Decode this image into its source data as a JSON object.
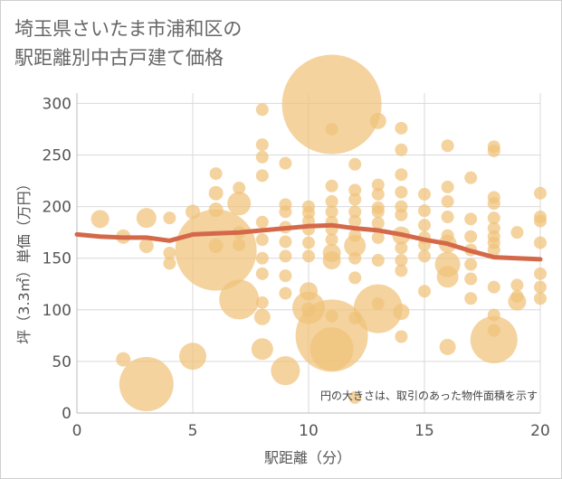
{
  "title_line1": "埼玉県さいたま市浦和区の",
  "title_line2": "駅距離別中古戸建て価格",
  "chart_data": {
    "type": "scatter",
    "xlabel": "駅距離（分）",
    "ylabel": "坪（3.3㎡）単価（万円）",
    "xlim": [
      0,
      20
    ],
    "ylim": [
      0,
      310
    ],
    "x_ticks": [
      0,
      5,
      10,
      15,
      20
    ],
    "y_ticks": [
      0,
      50,
      100,
      150,
      200,
      250,
      300
    ],
    "note": "円の大きさは、取引のあった物件面積を示す",
    "colors": {
      "bubble": "#F0C27A",
      "trend": "#D4694A",
      "grid": "#d9d9d9"
    },
    "trend": [
      [
        0,
        173
      ],
      [
        1,
        171
      ],
      [
        2,
        170
      ],
      [
        3,
        170
      ],
      [
        4,
        167
      ],
      [
        5,
        173
      ],
      [
        6,
        174
      ],
      [
        7,
        175
      ],
      [
        8,
        177
      ],
      [
        9,
        179
      ],
      [
        10,
        181
      ],
      [
        11,
        182
      ],
      [
        12,
        179
      ],
      [
        13,
        177
      ],
      [
        14,
        173
      ],
      [
        15,
        168
      ],
      [
        16,
        164
      ],
      [
        17,
        157
      ],
      [
        18,
        151
      ],
      [
        19,
        150
      ],
      [
        20,
        149
      ]
    ],
    "points": [
      [
        1,
        188,
        10
      ],
      [
        2,
        171,
        8
      ],
      [
        2,
        52,
        8
      ],
      [
        3,
        189,
        11
      ],
      [
        3,
        162,
        8
      ],
      [
        3,
        28,
        30
      ],
      [
        4,
        189,
        7
      ],
      [
        4,
        155,
        7
      ],
      [
        4,
        145,
        7
      ],
      [
        5,
        195,
        8
      ],
      [
        5,
        55,
        15
      ],
      [
        6,
        232,
        7
      ],
      [
        6,
        213,
        8
      ],
      [
        6,
        197,
        8
      ],
      [
        6,
        162,
        8
      ],
      [
        6,
        158,
        45
      ],
      [
        7,
        218,
        7
      ],
      [
        7,
        203,
        13
      ],
      [
        7,
        175,
        7
      ],
      [
        7,
        163,
        7
      ],
      [
        7,
        110,
        22
      ],
      [
        8,
        294,
        7
      ],
      [
        8,
        260,
        7
      ],
      [
        8,
        248,
        7
      ],
      [
        8,
        230,
        7
      ],
      [
        8,
        185,
        7
      ],
      [
        8,
        168,
        7
      ],
      [
        8,
        150,
        7
      ],
      [
        8,
        135,
        7
      ],
      [
        8,
        107,
        7
      ],
      [
        8,
        93,
        9
      ],
      [
        8,
        62,
        12
      ],
      [
        9,
        242,
        7
      ],
      [
        9,
        202,
        7
      ],
      [
        9,
        195,
        7
      ],
      [
        9,
        180,
        7
      ],
      [
        9,
        166,
        7
      ],
      [
        9,
        152,
        7
      ],
      [
        9,
        133,
        7
      ],
      [
        9,
        116,
        7
      ],
      [
        9,
        41,
        16
      ],
      [
        10,
        200,
        7
      ],
      [
        10,
        194,
        7
      ],
      [
        10,
        186,
        7
      ],
      [
        10,
        178,
        7
      ],
      [
        10,
        165,
        7
      ],
      [
        10,
        152,
        7
      ],
      [
        10,
        118,
        10
      ],
      [
        10,
        100,
        8
      ],
      [
        10,
        102,
        18
      ],
      [
        11,
        299,
        55
      ],
      [
        11,
        275,
        7
      ],
      [
        11,
        220,
        7
      ],
      [
        11,
        205,
        7
      ],
      [
        11,
        195,
        7
      ],
      [
        11,
        185,
        7
      ],
      [
        11,
        178,
        7
      ],
      [
        11,
        168,
        7
      ],
      [
        11,
        155,
        10
      ],
      [
        11,
        148,
        10
      ],
      [
        11,
        94,
        7
      ],
      [
        11,
        75,
        40
      ],
      [
        11,
        62,
        24
      ],
      [
        12,
        241,
        7
      ],
      [
        12,
        216,
        7
      ],
      [
        12,
        207,
        7
      ],
      [
        12,
        195,
        7
      ],
      [
        12,
        186,
        7
      ],
      [
        12,
        172,
        7
      ],
      [
        12,
        162,
        12
      ],
      [
        12,
        150,
        7
      ],
      [
        12,
        131,
        7
      ],
      [
        12,
        92,
        7
      ],
      [
        12,
        15,
        7
      ],
      [
        13,
        283,
        9
      ],
      [
        13,
        221,
        7
      ],
      [
        13,
        212,
        7
      ],
      [
        13,
        199,
        7
      ],
      [
        13,
        195,
        7
      ],
      [
        13,
        184,
        7
      ],
      [
        13,
        170,
        7
      ],
      [
        13,
        148,
        7
      ],
      [
        13,
        106,
        7
      ],
      [
        13,
        101,
        27
      ],
      [
        14,
        276,
        7
      ],
      [
        14,
        255,
        7
      ],
      [
        14,
        231,
        7
      ],
      [
        14,
        214,
        7
      ],
      [
        14,
        200,
        7
      ],
      [
        14,
        192,
        7
      ],
      [
        14,
        172,
        10
      ],
      [
        14,
        160,
        7
      ],
      [
        14,
        148,
        7
      ],
      [
        14,
        138,
        7
      ],
      [
        14,
        98,
        9
      ],
      [
        14,
        74,
        7
      ],
      [
        15,
        212,
        7
      ],
      [
        15,
        196,
        7
      ],
      [
        15,
        182,
        7
      ],
      [
        15,
        170,
        7
      ],
      [
        15,
        163,
        7
      ],
      [
        15,
        152,
        7
      ],
      [
        15,
        118,
        7
      ],
      [
        16,
        259,
        7
      ],
      [
        16,
        219,
        7
      ],
      [
        16,
        205,
        7
      ],
      [
        16,
        190,
        7
      ],
      [
        16,
        172,
        7
      ],
      [
        16,
        164,
        10
      ],
      [
        16,
        144,
        14
      ],
      [
        16,
        132,
        12
      ],
      [
        16,
        64,
        9
      ],
      [
        17,
        228,
        7
      ],
      [
        17,
        188,
        7
      ],
      [
        17,
        171,
        7
      ],
      [
        17,
        158,
        7
      ],
      [
        17,
        144,
        7
      ],
      [
        17,
        130,
        7
      ],
      [
        17,
        111,
        7
      ],
      [
        18,
        258,
        7
      ],
      [
        18,
        254,
        7
      ],
      [
        18,
        209,
        7
      ],
      [
        18,
        203,
        7
      ],
      [
        18,
        189,
        7
      ],
      [
        18,
        179,
        7
      ],
      [
        18,
        171,
        7
      ],
      [
        18,
        165,
        7
      ],
      [
        18,
        158,
        7
      ],
      [
        18,
        122,
        7
      ],
      [
        18,
        95,
        7
      ],
      [
        18,
        80,
        7
      ],
      [
        18,
        71,
        26
      ],
      [
        19,
        175,
        7
      ],
      [
        19,
        124,
        7
      ],
      [
        19,
        113,
        7
      ],
      [
        19,
        108,
        10
      ],
      [
        20,
        213,
        7
      ],
      [
        20,
        190,
        7
      ],
      [
        20,
        186,
        7
      ],
      [
        20,
        165,
        7
      ],
      [
        20,
        135,
        7
      ],
      [
        20,
        122,
        7
      ],
      [
        20,
        111,
        7
      ]
    ]
  }
}
